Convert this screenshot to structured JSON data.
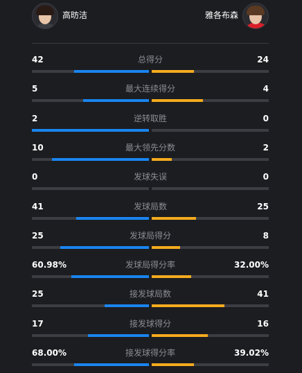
{
  "players": {
    "left": {
      "name": "高昉洁",
      "avatar_icon": "player-avatar"
    },
    "right": {
      "name": "雅各布森",
      "avatar_icon": "player-avatar"
    }
  },
  "colors": {
    "background": "#1c1d21",
    "left_bar": "#1a85f0",
    "right_bar": "#f5ab1e",
    "track": "#3c3e44",
    "label": "#8a8c92"
  },
  "stats": [
    {
      "label": "总得分",
      "left": "42",
      "right": "24",
      "left_ratio": 0.64,
      "right_ratio": 0.36
    },
    {
      "label": "最大连续得分",
      "left": "5",
      "right": "4",
      "left_ratio": 0.56,
      "right_ratio": 0.44
    },
    {
      "label": "逆转取胜",
      "left": "2",
      "right": "0",
      "left_ratio": 1.0,
      "right_ratio": 0.0
    },
    {
      "label": "最大领先分数",
      "left": "10",
      "right": "2",
      "left_ratio": 0.83,
      "right_ratio": 0.17
    },
    {
      "label": "发球失误",
      "left": "0",
      "right": "0",
      "left_ratio": 0.0,
      "right_ratio": 0.0
    },
    {
      "label": "发球局数",
      "left": "41",
      "right": "25",
      "left_ratio": 0.62,
      "right_ratio": 0.38
    },
    {
      "label": "发球局得分",
      "left": "25",
      "right": "8",
      "left_ratio": 0.76,
      "right_ratio": 0.24
    },
    {
      "label": "发球局得分率",
      "left": "60.98%",
      "right": "32.00%",
      "left_ratio": 0.66,
      "right_ratio": 0.34
    },
    {
      "label": "接发球局数",
      "left": "25",
      "right": "41",
      "left_ratio": 0.38,
      "right_ratio": 0.62
    },
    {
      "label": "接发球得分",
      "left": "17",
      "right": "16",
      "left_ratio": 0.52,
      "right_ratio": 0.48
    },
    {
      "label": "接发球得分率",
      "left": "68.00%",
      "right": "39.02%",
      "left_ratio": 0.64,
      "right_ratio": 0.36
    }
  ]
}
